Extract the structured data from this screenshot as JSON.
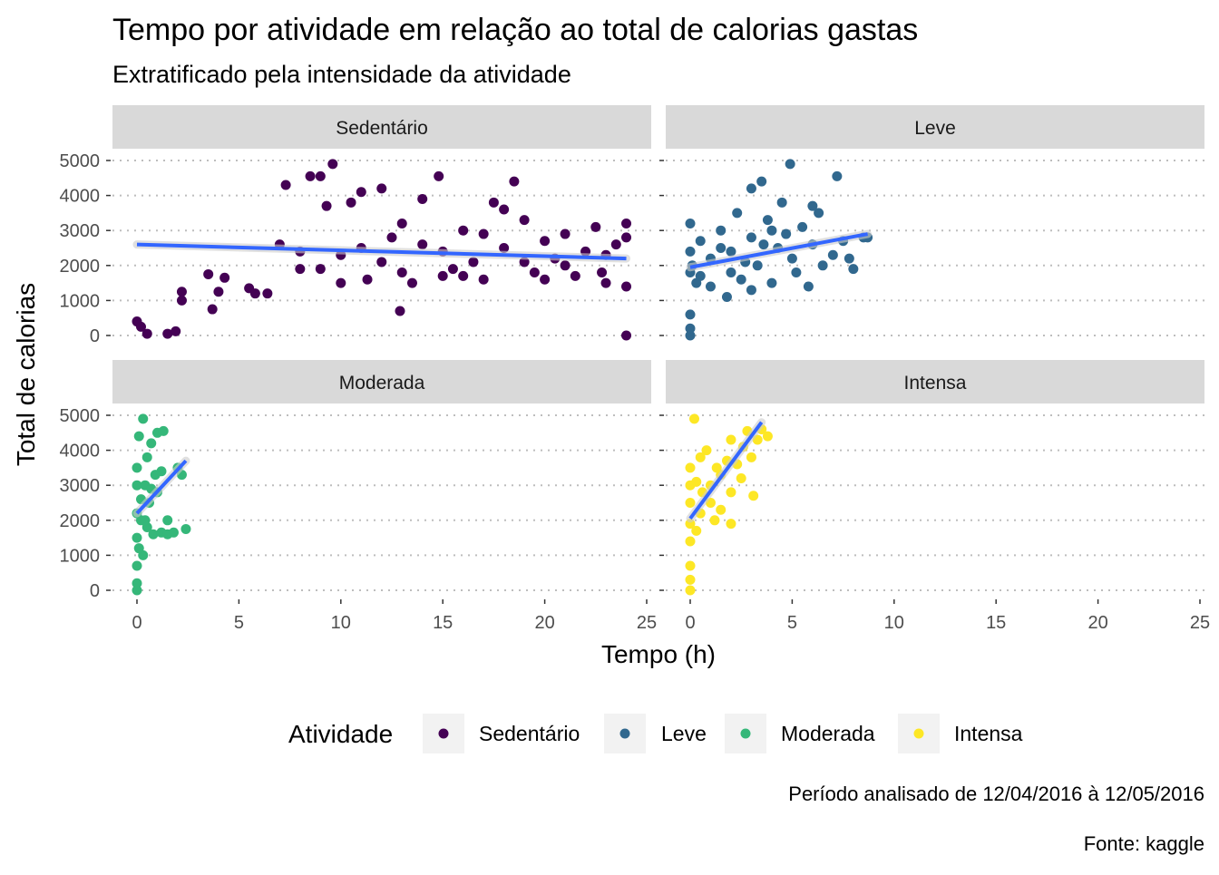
{
  "chart_data": {
    "type": "scatter",
    "title": "Tempo por atividade em relação ao total de calorias gastas",
    "subtitle": "Extratificado pela intensidade da atividade",
    "xlabel": "Tempo (h)",
    "ylabel": "Total de calorias",
    "xlim": [
      0,
      25
    ],
    "ylim": [
      0,
      5000
    ],
    "x_ticks": [
      "0",
      "5",
      "10",
      "15",
      "20",
      "25"
    ],
    "y_ticks": [
      "0",
      "1000",
      "2000",
      "3000",
      "4000",
      "5000"
    ],
    "x_tick_values": [
      0,
      5,
      10,
      15,
      20,
      25
    ],
    "y_tick_values": [
      0,
      1000,
      2000,
      3000,
      4000,
      5000
    ],
    "grid": "horizontal dotted",
    "legend": {
      "title": "Atividade",
      "placement": "bottom",
      "entries": [
        "Sedentário",
        "Leve",
        "Moderada",
        "Intensa"
      ]
    },
    "caption_lines": [
      "Período analisado de 12/04/2016 à 12/05/2016",
      "Fonte: kaggle"
    ],
    "trend_color": "#3366FF",
    "panels": [
      {
        "name": "Sedentário",
        "color": "#440154",
        "trend": [
          [
            0,
            2600
          ],
          [
            24,
            2200
          ]
        ],
        "points": [
          [
            0,
            400
          ],
          [
            0.2,
            250
          ],
          [
            0.5,
            50
          ],
          [
            1.5,
            50
          ],
          [
            1.9,
            120
          ],
          [
            2.2,
            1250
          ],
          [
            2.2,
            1000
          ],
          [
            3.5,
            1750
          ],
          [
            3.7,
            750
          ],
          [
            4,
            1250
          ],
          [
            4.3,
            1650
          ],
          [
            5.5,
            1350
          ],
          [
            5.8,
            1200
          ],
          [
            6.4,
            1200
          ],
          [
            7,
            2600
          ],
          [
            7.3,
            4300
          ],
          [
            8,
            1900
          ],
          [
            8.5,
            4550
          ],
          [
            9,
            4550
          ],
          [
            9.3,
            3700
          ],
          [
            9.6,
            4900
          ],
          [
            10,
            2300
          ],
          [
            10.5,
            3800
          ],
          [
            11,
            4100
          ],
          [
            11.3,
            1600
          ],
          [
            12,
            4200
          ],
          [
            12.5,
            2800
          ],
          [
            12.9,
            700
          ],
          [
            13,
            3200
          ],
          [
            13.5,
            1500
          ],
          [
            14,
            3900
          ],
          [
            14.8,
            4550
          ],
          [
            15,
            2400
          ],
          [
            15.5,
            1900
          ],
          [
            16,
            3000
          ],
          [
            16.5,
            2100
          ],
          [
            17,
            1600
          ],
          [
            17.5,
            3800
          ],
          [
            18,
            2500
          ],
          [
            18.5,
            4400
          ],
          [
            19,
            3300
          ],
          [
            19.5,
            1800
          ],
          [
            20,
            2700
          ],
          [
            20.5,
            2200
          ],
          [
            21,
            2900
          ],
          [
            21.5,
            1700
          ],
          [
            22,
            2400
          ],
          [
            22.5,
            3100
          ],
          [
            23,
            1500
          ],
          [
            23.5,
            2600
          ],
          [
            24,
            3200
          ],
          [
            24,
            1400
          ],
          [
            24,
            0
          ],
          [
            24,
            2800
          ],
          [
            12,
            2100
          ],
          [
            10,
            1500
          ],
          [
            14,
            2600
          ],
          [
            18,
            3600
          ],
          [
            20,
            1600
          ],
          [
            11,
            2500
          ],
          [
            9,
            1900
          ],
          [
            16,
            1700
          ],
          [
            19,
            2100
          ],
          [
            21,
            2000
          ],
          [
            22.8,
            1800
          ],
          [
            13,
            1800
          ],
          [
            17,
            2900
          ],
          [
            8,
            2400
          ],
          [
            15,
            1700
          ],
          [
            23,
            2300
          ]
        ]
      },
      {
        "name": "Leve",
        "color": "#31688E",
        "trend": [
          [
            0,
            1950
          ],
          [
            8.7,
            2900
          ]
        ],
        "points": [
          [
            0,
            3200
          ],
          [
            0,
            600
          ],
          [
            0,
            0
          ],
          [
            0,
            200
          ],
          [
            0.1,
            2000
          ],
          [
            0.3,
            1500
          ],
          [
            0.5,
            2700
          ],
          [
            1,
            2200
          ],
          [
            1,
            1400
          ],
          [
            1.5,
            3000
          ],
          [
            1.8,
            1100
          ],
          [
            2,
            2400
          ],
          [
            2.3,
            3500
          ],
          [
            2.5,
            1600
          ],
          [
            3,
            2800
          ],
          [
            3,
            4200
          ],
          [
            3.3,
            2000
          ],
          [
            3.5,
            4400
          ],
          [
            3.8,
            3300
          ],
          [
            4,
            1500
          ],
          [
            4.3,
            2500
          ],
          [
            4.5,
            3800
          ],
          [
            4.9,
            4900
          ],
          [
            5,
            2200
          ],
          [
            5.5,
            3100
          ],
          [
            5.8,
            1400
          ],
          [
            6,
            2600
          ],
          [
            6.3,
            3500
          ],
          [
            6.5,
            2000
          ],
          [
            7,
            2300
          ],
          [
            7.2,
            4550
          ],
          [
            7.5,
            2700
          ],
          [
            8,
            1900
          ],
          [
            8.5,
            2800
          ],
          [
            8.7,
            2800
          ],
          [
            2,
            1800
          ],
          [
            4,
            3000
          ],
          [
            3,
            1300
          ],
          [
            6,
            3700
          ],
          [
            1.5,
            2500
          ],
          [
            0,
            1800
          ],
          [
            0,
            2400
          ],
          [
            0.5,
            1700
          ],
          [
            2.7,
            2100
          ],
          [
            3.6,
            2600
          ],
          [
            5.2,
            1800
          ],
          [
            4.7,
            2900
          ],
          [
            7.8,
            2200
          ]
        ]
      },
      {
        "name": "Moderada",
        "color": "#35B779",
        "trend": [
          [
            0,
            2200
          ],
          [
            2.4,
            3700
          ]
        ],
        "points": [
          [
            0,
            0
          ],
          [
            0,
            200
          ],
          [
            0,
            700
          ],
          [
            0,
            1500
          ],
          [
            0,
            3500
          ],
          [
            0.1,
            4400
          ],
          [
            0.2,
            2000
          ],
          [
            0.3,
            4900
          ],
          [
            0.3,
            1000
          ],
          [
            0.4,
            3000
          ],
          [
            0.5,
            3800
          ],
          [
            0.6,
            2500
          ],
          [
            0.7,
            4200
          ],
          [
            0.8,
            1600
          ],
          [
            1,
            4500
          ],
          [
            1,
            2800
          ],
          [
            1.2,
            3400
          ],
          [
            1.2,
            1650
          ],
          [
            1.3,
            4550
          ],
          [
            1.5,
            2000
          ],
          [
            1.5,
            1600
          ],
          [
            1.8,
            1650
          ],
          [
            2,
            3500
          ],
          [
            2.2,
            3300
          ],
          [
            2.4,
            1750
          ],
          [
            0.5,
            1800
          ],
          [
            0.2,
            2600
          ],
          [
            0.9,
            3300
          ],
          [
            0,
            2200
          ],
          [
            0,
            3000
          ],
          [
            0.1,
            1200
          ],
          [
            0.4,
            2000
          ],
          [
            0.7,
            2900
          ]
        ]
      },
      {
        "name": "Intensa",
        "color": "#FDE725",
        "trend": [
          [
            0,
            2050
          ],
          [
            3.5,
            4800
          ]
        ],
        "points": [
          [
            0,
            0
          ],
          [
            0,
            300
          ],
          [
            0,
            700
          ],
          [
            0,
            1400
          ],
          [
            0,
            2500
          ],
          [
            0,
            3500
          ],
          [
            0.2,
            4900
          ],
          [
            0.3,
            3100
          ],
          [
            0.5,
            2200
          ],
          [
            0.5,
            3800
          ],
          [
            1,
            3000
          ],
          [
            1,
            2500
          ],
          [
            1.2,
            2000
          ],
          [
            1.5,
            3300
          ],
          [
            1.5,
            2300
          ],
          [
            1.8,
            3700
          ],
          [
            2,
            2800
          ],
          [
            2,
            1900
          ],
          [
            2.3,
            3600
          ],
          [
            2.5,
            3200
          ],
          [
            2.6,
            4100
          ],
          [
            2.8,
            4550
          ],
          [
            3,
            3800
          ],
          [
            3.1,
            2700
          ],
          [
            3.3,
            4300
          ],
          [
            3.5,
            4600
          ],
          [
            3.8,
            4400
          ],
          [
            0.8,
            4000
          ],
          [
            2,
            4300
          ],
          [
            0,
            1900
          ],
          [
            0,
            3000
          ],
          [
            0.3,
            1700
          ],
          [
            0.6,
            2800
          ],
          [
            1.3,
            3500
          ]
        ]
      }
    ]
  }
}
